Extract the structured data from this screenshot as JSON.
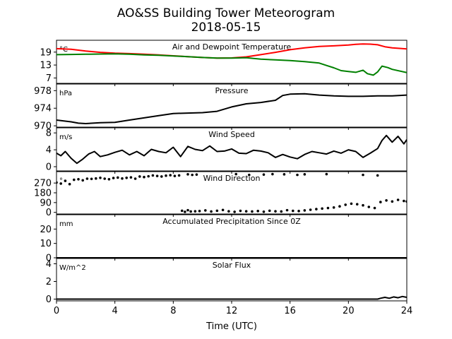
{
  "title": "AO&SS Building Tower Meteorogram",
  "subtitle": "2018-05-15",
  "xlabel": "Time (UTC)",
  "colors": {
    "temperature": "#ff0000",
    "dewpoint": "#008000",
    "default": "#000000"
  },
  "chart_data": [
    {
      "type": "line",
      "panel_title": "Air and Dewpoint Temperature",
      "unit": "°C",
      "xlim": [
        0,
        24
      ],
      "ylim": [
        4.5,
        24.5
      ],
      "yticks": [
        7,
        13,
        19
      ],
      "xticks": [
        0,
        4,
        8,
        12,
        16,
        20,
        24
      ],
      "series": [
        {
          "color": "#ff0000",
          "x": [
            0,
            1,
            2,
            3,
            4,
            5,
            6,
            7,
            8,
            9,
            10,
            11,
            12,
            13,
            14,
            15,
            16,
            17,
            18,
            19,
            20,
            20.5,
            21,
            21.5,
            22,
            22.5,
            23,
            24
          ],
          "y": [
            20.6,
            20.3,
            19.5,
            18.9,
            18.5,
            18.3,
            18.0,
            17.7,
            17.3,
            16.9,
            16.5,
            16.2,
            16.3,
            16.8,
            17.8,
            18.9,
            20.1,
            21.0,
            21.6,
            21.9,
            22.3,
            22.6,
            22.8,
            22.7,
            22.4,
            21.5,
            21.0,
            20.5
          ]
        },
        {
          "color": "#008000",
          "x": [
            0,
            1,
            2,
            3,
            4,
            5,
            6,
            7,
            8,
            9,
            10,
            11,
            12,
            13,
            14,
            15,
            16,
            17,
            18,
            18.5,
            19,
            19.5,
            20,
            20.5,
            21,
            21.3,
            21.7,
            22,
            22.3,
            22.7,
            23,
            24
          ],
          "y": [
            17.8,
            17.9,
            18.0,
            18.1,
            18.2,
            18.0,
            17.7,
            17.5,
            17.2,
            16.9,
            16.5,
            16.2,
            16.2,
            16.4,
            15.7,
            15.4,
            15.1,
            14.6,
            13.9,
            12.8,
            11.7,
            10.4,
            10.0,
            9.6,
            10.6,
            9.0,
            8.3,
            9.8,
            12.5,
            11.8,
            11.0,
            9.5
          ]
        }
      ]
    },
    {
      "type": "line",
      "panel_title": "Pressure",
      "unit": "hPa",
      "xlim": [
        0,
        24
      ],
      "ylim": [
        969.7,
        979.5
      ],
      "yticks": [
        970,
        974,
        978
      ],
      "series": [
        {
          "color": "#000000",
          "x": [
            0,
            0.5,
            1,
            1.5,
            2,
            3,
            4,
            5,
            6,
            7,
            8,
            9,
            10,
            11,
            12,
            13,
            14,
            15,
            15.5,
            16,
            17,
            18,
            19,
            20,
            21,
            22,
            23,
            24
          ],
          "y": [
            971.3,
            971.1,
            970.9,
            970.6,
            970.5,
            970.7,
            970.8,
            971.3,
            971.8,
            972.3,
            972.8,
            972.9,
            973.0,
            973.3,
            974.3,
            975.0,
            975.3,
            975.8,
            976.9,
            977.2,
            977.3,
            977.0,
            976.8,
            976.7,
            976.7,
            976.8,
            976.8,
            977.0
          ]
        }
      ]
    },
    {
      "type": "line",
      "panel_title": "Wind Speed",
      "unit": "m/s",
      "xlim": [
        0,
        24
      ],
      "ylim": [
        -1,
        9.2
      ],
      "yticks": [
        0,
        4,
        8
      ],
      "series": [
        {
          "color": "#000000",
          "x": [
            0,
            0.3,
            0.6,
            1,
            1.4,
            1.8,
            2.2,
            2.6,
            3,
            3.5,
            4,
            4.5,
            5,
            5.5,
            6,
            6.5,
            7,
            7.5,
            8,
            8.5,
            9,
            9.5,
            10,
            10.5,
            11,
            11.5,
            12,
            12.5,
            13,
            13.5,
            14,
            14.5,
            15,
            15.5,
            16,
            16.5,
            17,
            17.5,
            18,
            18.5,
            19,
            19.5,
            20,
            20.5,
            21,
            21.5,
            22,
            22.3,
            22.6,
            23,
            23.4,
            23.8,
            24
          ],
          "y": [
            3.2,
            2.6,
            3.6,
            2.0,
            0.8,
            1.8,
            3.0,
            3.6,
            2.4,
            2.8,
            3.4,
            3.9,
            2.8,
            3.6,
            2.6,
            4.1,
            3.6,
            3.3,
            4.6,
            2.4,
            4.8,
            4.1,
            3.8,
            4.9,
            3.6,
            3.7,
            4.2,
            3.2,
            3.1,
            3.9,
            3.7,
            3.3,
            2.2,
            2.9,
            2.3,
            1.9,
            2.9,
            3.6,
            3.3,
            3.0,
            3.7,
            3.2,
            4.0,
            3.6,
            2.2,
            3.2,
            4.3,
            6.2,
            7.4,
            5.8,
            7.2,
            5.4,
            6.4
          ]
        }
      ]
    },
    {
      "type": "scatter",
      "panel_title": "Wind Direction",
      "unit": "°",
      "xlim": [
        0,
        24
      ],
      "ylim": [
        -15,
        375
      ],
      "yticks": [
        0,
        90,
        180,
        270
      ],
      "series": [
        {
          "color": "#000000",
          "x": [
            0,
            0.3,
            0.6,
            0.9,
            1.2,
            1.5,
            1.8,
            2.1,
            2.4,
            2.7,
            3,
            3.3,
            3.6,
            3.9,
            4.2,
            4.5,
            4.8,
            5.1,
            5.4,
            5.7,
            6,
            6.3,
            6.6,
            6.9,
            7.2,
            7.5,
            7.8,
            8.1,
            8.4,
            8.6,
            8.8,
            9.0,
            9.2,
            9.5,
            9.8,
            10.2,
            10.6,
            11.0,
            11.4,
            11.8,
            12.2,
            12.6,
            13.0,
            13.4,
            13.8,
            14.2,
            14.6,
            15.0,
            15.4,
            15.8,
            16.2,
            16.6,
            17.0,
            17.4,
            17.8,
            18.2,
            18.6,
            19.0,
            19.4,
            19.8,
            20.2,
            20.6,
            21.0,
            21.4,
            21.8,
            22.2,
            22.6,
            23.0,
            23.4,
            23.8,
            24,
            9.0,
            9.3,
            9.6,
            12.3,
            13.2,
            14.2,
            14.8,
            15.6,
            16.5,
            17.0,
            18.5,
            21.0,
            22.0
          ],
          "y": [
            275,
            265,
            290,
            260,
            300,
            305,
            295,
            310,
            308,
            312,
            318,
            310,
            305,
            316,
            320,
            312,
            318,
            322,
            310,
            330,
            325,
            332,
            340,
            335,
            330,
            338,
            342,
            335,
            340,
            15,
            5,
            20,
            8,
            10,
            12,
            18,
            8,
            15,
            22,
            10,
            5,
            14,
            10,
            8,
            12,
            6,
            15,
            10,
            8,
            20,
            14,
            12,
            18,
            24,
            30,
            35,
            40,
            45,
            55,
            70,
            80,
            75,
            65,
            50,
            40,
            95,
            110,
            100,
            115,
            105,
            100,
            350,
            345,
            348,
            352,
            345,
            348,
            352,
            350,
            345,
            350,
            352,
            345,
            340
          ]
        }
      ]
    },
    {
      "type": "line",
      "panel_title": "Accumulated Precipitation Since 0Z",
      "unit": "mm",
      "xlim": [
        0,
        24
      ],
      "ylim": [
        0,
        30
      ],
      "yticks": [
        0,
        10,
        20
      ],
      "series": [
        {
          "color": "#000000",
          "x": [
            0,
            24
          ],
          "y": [
            0,
            0
          ]
        }
      ]
    },
    {
      "type": "line",
      "panel_title": "Solar Flux",
      "unit": "W/m^2",
      "xlim": [
        0,
        24
      ],
      "ylim": [
        -0.2,
        4.6
      ],
      "yticks": [
        0,
        2,
        4
      ],
      "series": [
        {
          "color": "#000000",
          "x": [
            0,
            22.0,
            22.2,
            22.5,
            22.8,
            23.1,
            23.4,
            23.7,
            24
          ],
          "y": [
            0,
            0,
            0.1,
            0.2,
            0.1,
            0.25,
            0.15,
            0.3,
            0.2
          ]
        }
      ]
    }
  ]
}
